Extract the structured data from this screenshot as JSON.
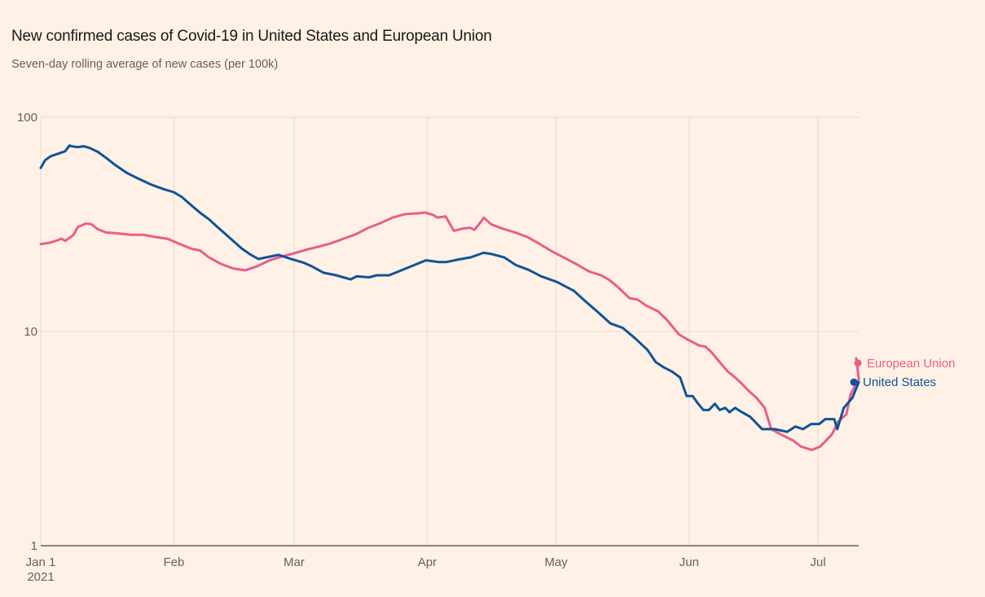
{
  "title": "New confirmed cases of Covid-19 in United States and European Union",
  "subtitle": "Seven-day rolling average of new cases (per 100k)",
  "chart_data": {
    "type": "line",
    "title": "New confirmed cases of Covid-19 in United States and European Union",
    "subtitle": "Seven-day rolling average of new cases (per 100k)",
    "xlabel": "",
    "ylabel": "",
    "yscale": "log",
    "ylim": [
      1,
      100
    ],
    "xlim_days": [
      0,
      191
    ],
    "grid": true,
    "legend_placement": "inline-right-end-of-lines",
    "y_ticks": [
      {
        "value": 1,
        "label": "1"
      },
      {
        "value": 10,
        "label": "10"
      },
      {
        "value": 100,
        "label": "100"
      }
    ],
    "x_ticks": [
      {
        "day": 0,
        "label": "Jan 1",
        "sublabel": "2021"
      },
      {
        "day": 31,
        "label": "Feb"
      },
      {
        "day": 59,
        "label": "Mar"
      },
      {
        "day": 90,
        "label": "Apr"
      },
      {
        "day": 120,
        "label": "May"
      },
      {
        "day": 151,
        "label": "Jun"
      },
      {
        "day": 181,
        "label": "Jul"
      }
    ],
    "x_unit": "days since Jan 1 2021",
    "series": [
      {
        "name": "European Union",
        "color": "#e95d8c",
        "end_marker": true,
        "points": [
          [
            0,
            25.6
          ],
          [
            1.9,
            25.9
          ],
          [
            3.8,
            26.6
          ],
          [
            4.8,
            27.1
          ],
          [
            5.7,
            26.5
          ],
          [
            7.6,
            28.2
          ],
          [
            8.6,
            30.7
          ],
          [
            10.5,
            31.9
          ],
          [
            11.8,
            31.7
          ],
          [
            13.3,
            30.0
          ],
          [
            15.2,
            29.0
          ],
          [
            18.1,
            28.7
          ],
          [
            20.9,
            28.3
          ],
          [
            23.8,
            28.3
          ],
          [
            26.7,
            27.6
          ],
          [
            29.5,
            27.1
          ],
          [
            32.4,
            25.6
          ],
          [
            35.2,
            24.3
          ],
          [
            37.1,
            23.9
          ],
          [
            39.0,
            22.3
          ],
          [
            41.9,
            20.7
          ],
          [
            44.8,
            19.7
          ],
          [
            47.6,
            19.3
          ],
          [
            50.5,
            20.2
          ],
          [
            53.3,
            21.5
          ],
          [
            56.2,
            22.4
          ],
          [
            59.0,
            23.2
          ],
          [
            61.9,
            24.1
          ],
          [
            64.8,
            24.9
          ],
          [
            67.6,
            25.8
          ],
          [
            70.5,
            27.1
          ],
          [
            73.3,
            28.4
          ],
          [
            76.2,
            30.4
          ],
          [
            79.0,
            32.0
          ],
          [
            81.9,
            34.0
          ],
          [
            84.8,
            35.3
          ],
          [
            87.6,
            35.6
          ],
          [
            89.5,
            35.9
          ],
          [
            91.4,
            35.0
          ],
          [
            92.4,
            34.0
          ],
          [
            94.3,
            34.5
          ],
          [
            96.2,
            29.5
          ],
          [
            98.1,
            30.2
          ],
          [
            100.0,
            30.5
          ],
          [
            101.0,
            29.8
          ],
          [
            102.5,
            32.5
          ],
          [
            103.2,
            34.0
          ],
          [
            104.8,
            31.7
          ],
          [
            107.6,
            30.2
          ],
          [
            110.5,
            29.0
          ],
          [
            113.3,
            27.6
          ],
          [
            116.2,
            25.6
          ],
          [
            119.0,
            23.7
          ],
          [
            121.9,
            22.1
          ],
          [
            124.8,
            20.6
          ],
          [
            127.6,
            19.1
          ],
          [
            130.5,
            18.3
          ],
          [
            132.4,
            17.4
          ],
          [
            134.3,
            16.2
          ],
          [
            137.1,
            14.3
          ],
          [
            139.0,
            14.1
          ],
          [
            141.0,
            13.2
          ],
          [
            143.8,
            12.4
          ],
          [
            145.7,
            11.4
          ],
          [
            148.6,
            9.7
          ],
          [
            150.5,
            9.2
          ],
          [
            153.3,
            8.6
          ],
          [
            154.8,
            8.5
          ],
          [
            156.2,
            8.0
          ],
          [
            158.1,
            7.2
          ],
          [
            160.0,
            6.5
          ],
          [
            161.3,
            6.2
          ],
          [
            162.9,
            5.8
          ],
          [
            164.8,
            5.3
          ],
          [
            166.7,
            4.9
          ],
          [
            168.6,
            4.4
          ],
          [
            170.1,
            3.5
          ],
          [
            172.4,
            3.3
          ],
          [
            175.2,
            3.1
          ],
          [
            177.1,
            2.9
          ],
          [
            179.6,
            2.8
          ],
          [
            181.5,
            2.9
          ],
          [
            182.9,
            3.1
          ],
          [
            184.2,
            3.3
          ],
          [
            185.7,
            3.8
          ],
          [
            187.6,
            4.1
          ],
          [
            188.6,
            5.1
          ],
          [
            190.5,
            6.0
          ],
          [
            189.9,
            7.5
          ]
        ]
      },
      {
        "name": "United States",
        "color": "#0f5499",
        "end_marker": true,
        "points": [
          [
            0,
            58.0
          ],
          [
            1.0,
            63.0
          ],
          [
            2.3,
            65.8
          ],
          [
            3.8,
            67.3
          ],
          [
            5.7,
            69.4
          ],
          [
            6.7,
            73.8
          ],
          [
            7.2,
            73.2
          ],
          [
            8.6,
            72.6
          ],
          [
            10.0,
            73.2
          ],
          [
            11.4,
            71.9
          ],
          [
            13.3,
            68.9
          ],
          [
            15.2,
            64.7
          ],
          [
            17.1,
            60.4
          ],
          [
            20.0,
            55.1
          ],
          [
            22.9,
            51.5
          ],
          [
            25.7,
            48.5
          ],
          [
            28.6,
            46.2
          ],
          [
            31.0,
            44.7
          ],
          [
            32.9,
            42.4
          ],
          [
            35.4,
            38.3
          ],
          [
            37.3,
            35.6
          ],
          [
            39.2,
            33.4
          ],
          [
            41.1,
            30.8
          ],
          [
            43.9,
            27.5
          ],
          [
            46.8,
            24.4
          ],
          [
            48.8,
            22.9
          ],
          [
            50.7,
            21.8
          ],
          [
            52.6,
            22.2
          ],
          [
            55.4,
            22.8
          ],
          [
            58.3,
            21.8
          ],
          [
            61.1,
            21.0
          ],
          [
            63.0,
            20.2
          ],
          [
            65.9,
            18.8
          ],
          [
            68.8,
            18.3
          ],
          [
            72.2,
            17.5
          ],
          [
            73.6,
            18.1
          ],
          [
            76.4,
            17.9
          ],
          [
            78.3,
            18.3
          ],
          [
            81.1,
            18.3
          ],
          [
            84.0,
            19.3
          ],
          [
            86.9,
            20.4
          ],
          [
            89.7,
            21.5
          ],
          [
            92.6,
            21.1
          ],
          [
            94.5,
            21.1
          ],
          [
            97.4,
            21.7
          ],
          [
            100.2,
            22.2
          ],
          [
            103.1,
            23.3
          ],
          [
            105.0,
            23.0
          ],
          [
            107.9,
            22.2
          ],
          [
            110.7,
            20.4
          ],
          [
            113.6,
            19.4
          ],
          [
            116.5,
            18.1
          ],
          [
            120.3,
            17.0
          ],
          [
            124.1,
            15.5
          ],
          [
            126.9,
            13.8
          ],
          [
            129.8,
            12.3
          ],
          [
            132.7,
            10.9
          ],
          [
            135.5,
            10.4
          ],
          [
            138.4,
            9.3
          ],
          [
            141.3,
            8.2
          ],
          [
            143.2,
            7.2
          ],
          [
            145.1,
            6.8
          ],
          [
            147.0,
            6.5
          ],
          [
            148.9,
            6.1
          ],
          [
            150.4,
            5.0
          ],
          [
            151.8,
            5.0
          ],
          [
            153.1,
            4.6
          ],
          [
            154.3,
            4.3
          ],
          [
            155.6,
            4.3
          ],
          [
            157.0,
            4.6
          ],
          [
            158.1,
            4.3
          ],
          [
            159.4,
            4.4
          ],
          [
            160.4,
            4.2
          ],
          [
            161.7,
            4.4
          ],
          [
            163.3,
            4.2
          ],
          [
            165.2,
            4.0
          ],
          [
            168.0,
            3.5
          ],
          [
            170.9,
            3.5
          ],
          [
            173.8,
            3.4
          ],
          [
            175.7,
            3.6
          ],
          [
            177.5,
            3.5
          ],
          [
            179.4,
            3.7
          ],
          [
            181.3,
            3.7
          ],
          [
            182.7,
            3.9
          ],
          [
            183.6,
            3.9
          ],
          [
            184.8,
            3.9
          ],
          [
            185.5,
            3.5
          ],
          [
            187.0,
            4.4
          ],
          [
            189.0,
            4.9
          ],
          [
            190.5,
            5.8
          ]
        ]
      }
    ]
  },
  "legend": {
    "eu_label": "European Union",
    "us_label": "United States"
  },
  "x_axis": {
    "jan": "Jan 1",
    "year": "2021",
    "feb": "Feb",
    "mar": "Mar",
    "apr": "Apr",
    "may": "May",
    "jun": "Jun",
    "jul": "Jul"
  },
  "y_axis": {
    "t1": "1",
    "t10": "10",
    "t100": "100"
  }
}
